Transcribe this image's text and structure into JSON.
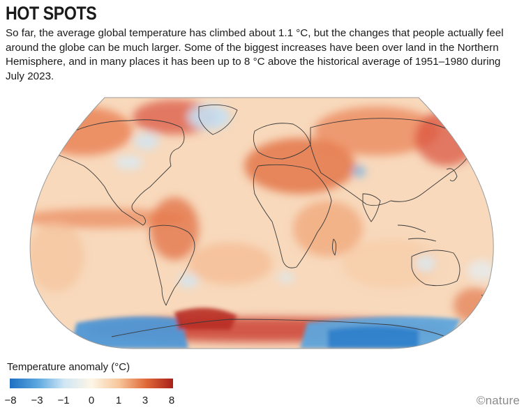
{
  "header": {
    "title": "HOT SPOTS",
    "subtitle": "So far, the average global temperature has climbed about 1.1 °C, but the changes that people actually feel around the globe can be much larger. Some of the biggest increases have been over land in the Northern Hemisphere, and in many places it has been up to 8 °C above the historical average of 1951–1980 during July 2023."
  },
  "legend": {
    "title": "Temperature anomaly (°C)",
    "ticks": [
      "−8",
      "−3",
      "−1",
      "0",
      "1",
      "3",
      "8"
    ],
    "colors": [
      "#1c6fc2",
      "#5aa6de",
      "#cfe6f5",
      "#fdf6e6",
      "#f7c79c",
      "#e06a3a",
      "#a8201a"
    ]
  },
  "credit": "©nature",
  "map": {
    "projection": "Robinson",
    "period": "July 2023",
    "baseline": "1951–1980",
    "colors": {
      "ocean_base": "#f9dcc0",
      "warm": "#ea7a48",
      "hot": "#c8382a",
      "cool": "#bcdcf2",
      "cold": "#2f7fca",
      "coast": "#3a3a3a"
    }
  }
}
